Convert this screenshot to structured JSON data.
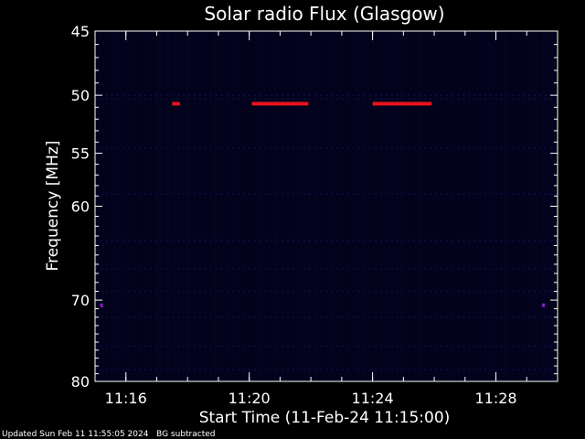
{
  "chart_data": {
    "type": "heatmap",
    "title": "Solar radio Flux (Glasgow)",
    "xlabel": "Start Time (11-Feb-24 11:15:00)",
    "ylabel": "Frequency [MHz]",
    "x_range_minutes": [
      "11:15:00",
      "11:30:00"
    ],
    "x_ticks": [
      "11:16",
      "11:20",
      "11:24",
      "11:28"
    ],
    "y_scale": "log",
    "ylim": [
      45,
      80
    ],
    "y_ticks": [
      45,
      50,
      55,
      60,
      70,
      80
    ],
    "colors": {
      "background": "#02021a",
      "channel": "#1a1a7a",
      "hot": "#e8141a",
      "spot": "#8a20c8"
    },
    "features": [
      {
        "name": "RFI band",
        "freq_mhz": 50.7,
        "start": "11:20:05",
        "end": "11:21:55",
        "color": "hot"
      },
      {
        "name": "RFI band",
        "freq_mhz": 50.7,
        "start": "11:24:00",
        "end": "11:25:55",
        "color": "hot"
      },
      {
        "name": "RFI short",
        "freq_mhz": 50.7,
        "start": "11:17:30",
        "end": "11:17:45",
        "color": "hot"
      },
      {
        "name": "spot",
        "freq_mhz": 70.6,
        "start": "11:15:10",
        "end": "11:15:15",
        "color": "spot"
      },
      {
        "name": "spot",
        "freq_mhz": 70.6,
        "start": "11:29:30",
        "end": "11:29:35",
        "color": "spot"
      }
    ]
  },
  "footer": {
    "updated": "Updated Sun Feb 11 11:55:05 2024",
    "note": "BG subtracted"
  }
}
